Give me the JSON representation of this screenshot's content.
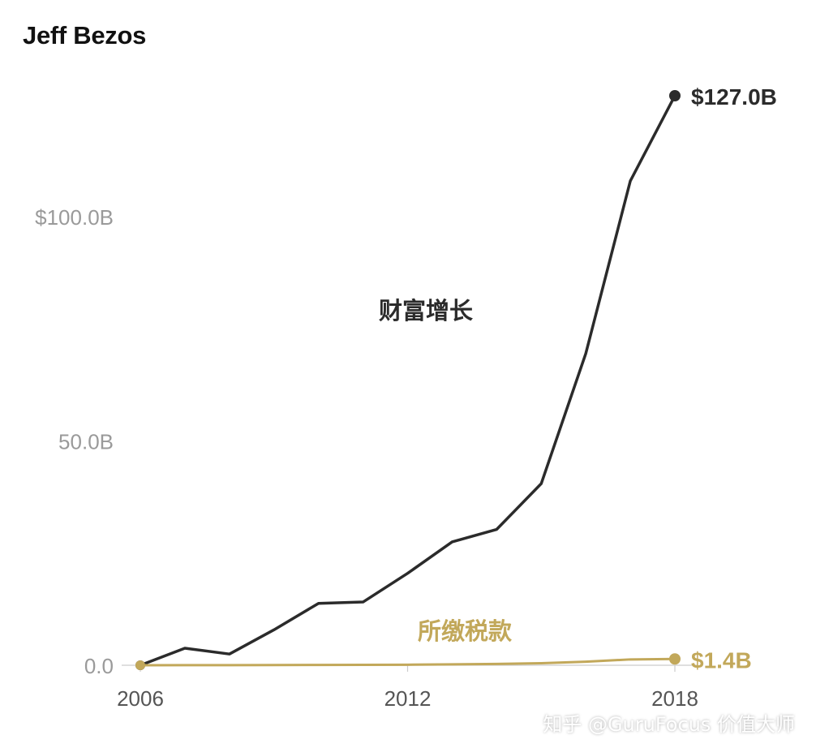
{
  "chart_data": {
    "type": "line",
    "title": "Jeff Bezos",
    "x": [
      2006,
      2007,
      2008,
      2009,
      2010,
      2011,
      2012,
      2013,
      2014,
      2015,
      2016,
      2017,
      2018
    ],
    "series": [
      {
        "name": "财富增长",
        "values": [
          0,
          3.8,
          2.5,
          7.9,
          13.8,
          14.1,
          20.5,
          27.5,
          30.3,
          40.5,
          69.5,
          108.0,
          127.0
        ],
        "end_label": "$127.0B",
        "color": "#2b2b2b"
      },
      {
        "name": "所缴税款",
        "values": [
          0,
          0.02,
          0.03,
          0.05,
          0.07,
          0.09,
          0.12,
          0.2,
          0.3,
          0.45,
          0.8,
          1.3,
          1.4
        ],
        "end_label": "$1.4B",
        "color": "#c2a85a"
      }
    ],
    "y_ticks": [
      {
        "value": 100,
        "label": "$100.0B"
      },
      {
        "value": 50,
        "label": "50.0B"
      },
      {
        "value": 0,
        "label": "0.0"
      }
    ],
    "x_ticks": [
      {
        "value": 2006,
        "label": "2006"
      },
      {
        "value": 2012,
        "label": "2012"
      },
      {
        "value": 2018,
        "label": "2018"
      }
    ],
    "xlim": [
      2006,
      2018
    ],
    "ylim": [
      0,
      127
    ],
    "grid": false,
    "legend": "inline labels"
  },
  "watermark": "知乎 @GuruFocus 价值大师",
  "colors": {
    "wealth": "#2b2b2b",
    "tax": "#c2a85a",
    "tick_label": "#9a9a9a",
    "axis": "#cccccc"
  }
}
